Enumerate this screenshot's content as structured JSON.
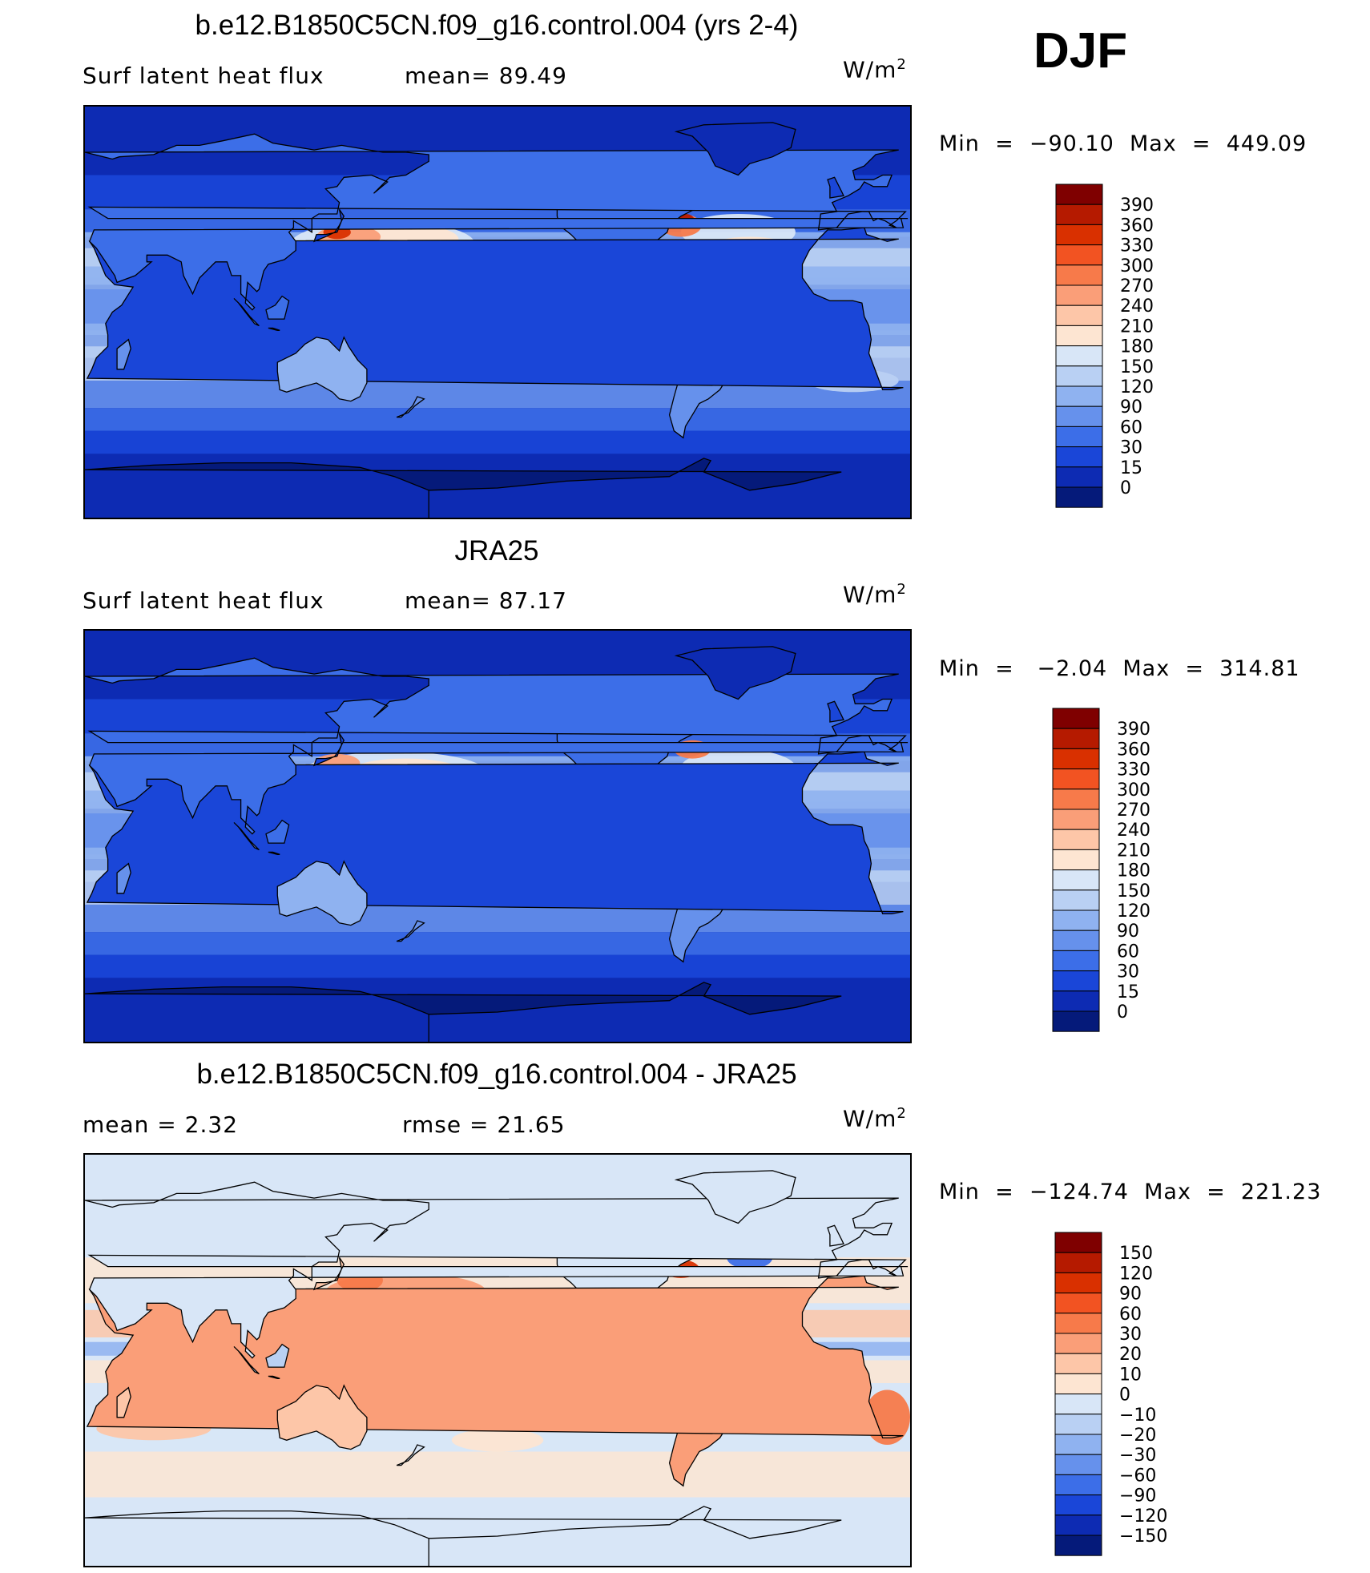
{
  "season": "DJF",
  "panels": [
    {
      "title": "b.e12.B1850C5CN.f09_g16.control.004 (yrs 2-4)",
      "left_label": "Surf  latent  heat  flux",
      "mid_label": "mean=   89.49",
      "units": "W/m",
      "units_sup": "2",
      "minmax": "Min  =  −90.10  Max  =  449.09",
      "map_type": "full_field"
    },
    {
      "title": "JRA25",
      "left_label": "Surf  latent  heat  flux",
      "mid_label": "mean=   87.17",
      "units": "W/m",
      "units_sup": "2",
      "minmax": "Min  =   −2.04  Max  =  314.81",
      "map_type": "full_field"
    },
    {
      "title": "b.e12.B1850C5CN.f09_g16.control.004 - JRA25",
      "left_label": "mean  =     2.32",
      "mid_label": "rmse  =    21.65",
      "units": "W/m",
      "units_sup": "2",
      "minmax": "Min  =  −124.74  Max  =  221.23",
      "map_type": "difference"
    }
  ],
  "colorbars": [
    {
      "labels": [
        "390",
        "360",
        "330",
        "300",
        "270",
        "240",
        "210",
        "180",
        "150",
        "120",
        "90",
        "60",
        "30",
        "15",
        "0"
      ],
      "colors": [
        "#7f0000",
        "#b51a00",
        "#d93000",
        "#f25322",
        "#f77a4a",
        "#fa9e78",
        "#fdc6a8",
        "#fde5d2",
        "#d8e6f7",
        "#b9d0f3",
        "#8fb2f0",
        "#6691ec",
        "#3c6ee8",
        "#1a46d8",
        "#0d2bb3",
        "#051a7a"
      ]
    },
    {
      "labels": [
        "390",
        "360",
        "330",
        "300",
        "270",
        "240",
        "210",
        "180",
        "150",
        "120",
        "90",
        "60",
        "30",
        "15",
        "0"
      ],
      "colors": [
        "#7f0000",
        "#b51a00",
        "#d93000",
        "#f25322",
        "#f77a4a",
        "#fa9e78",
        "#fdc6a8",
        "#fde5d2",
        "#d8e6f7",
        "#b9d0f3",
        "#8fb2f0",
        "#6691ec",
        "#3c6ee8",
        "#1a46d8",
        "#0d2bb3",
        "#051a7a"
      ]
    },
    {
      "labels": [
        "150",
        "120",
        "90",
        "60",
        "30",
        "20",
        "10",
        "0",
        "−10",
        "−20",
        "−30",
        "−60",
        "−90",
        "−120",
        "−150"
      ],
      "colors": [
        "#7f0000",
        "#b51a00",
        "#d93000",
        "#f25322",
        "#f77a4a",
        "#fa9e78",
        "#fdc6a8",
        "#fde5d2",
        "#d8e6f7",
        "#b9d0f3",
        "#8fb2f0",
        "#6691ec",
        "#3c6ee8",
        "#1a46d8",
        "#0d2bb3",
        "#051a7a"
      ]
    }
  ]
}
